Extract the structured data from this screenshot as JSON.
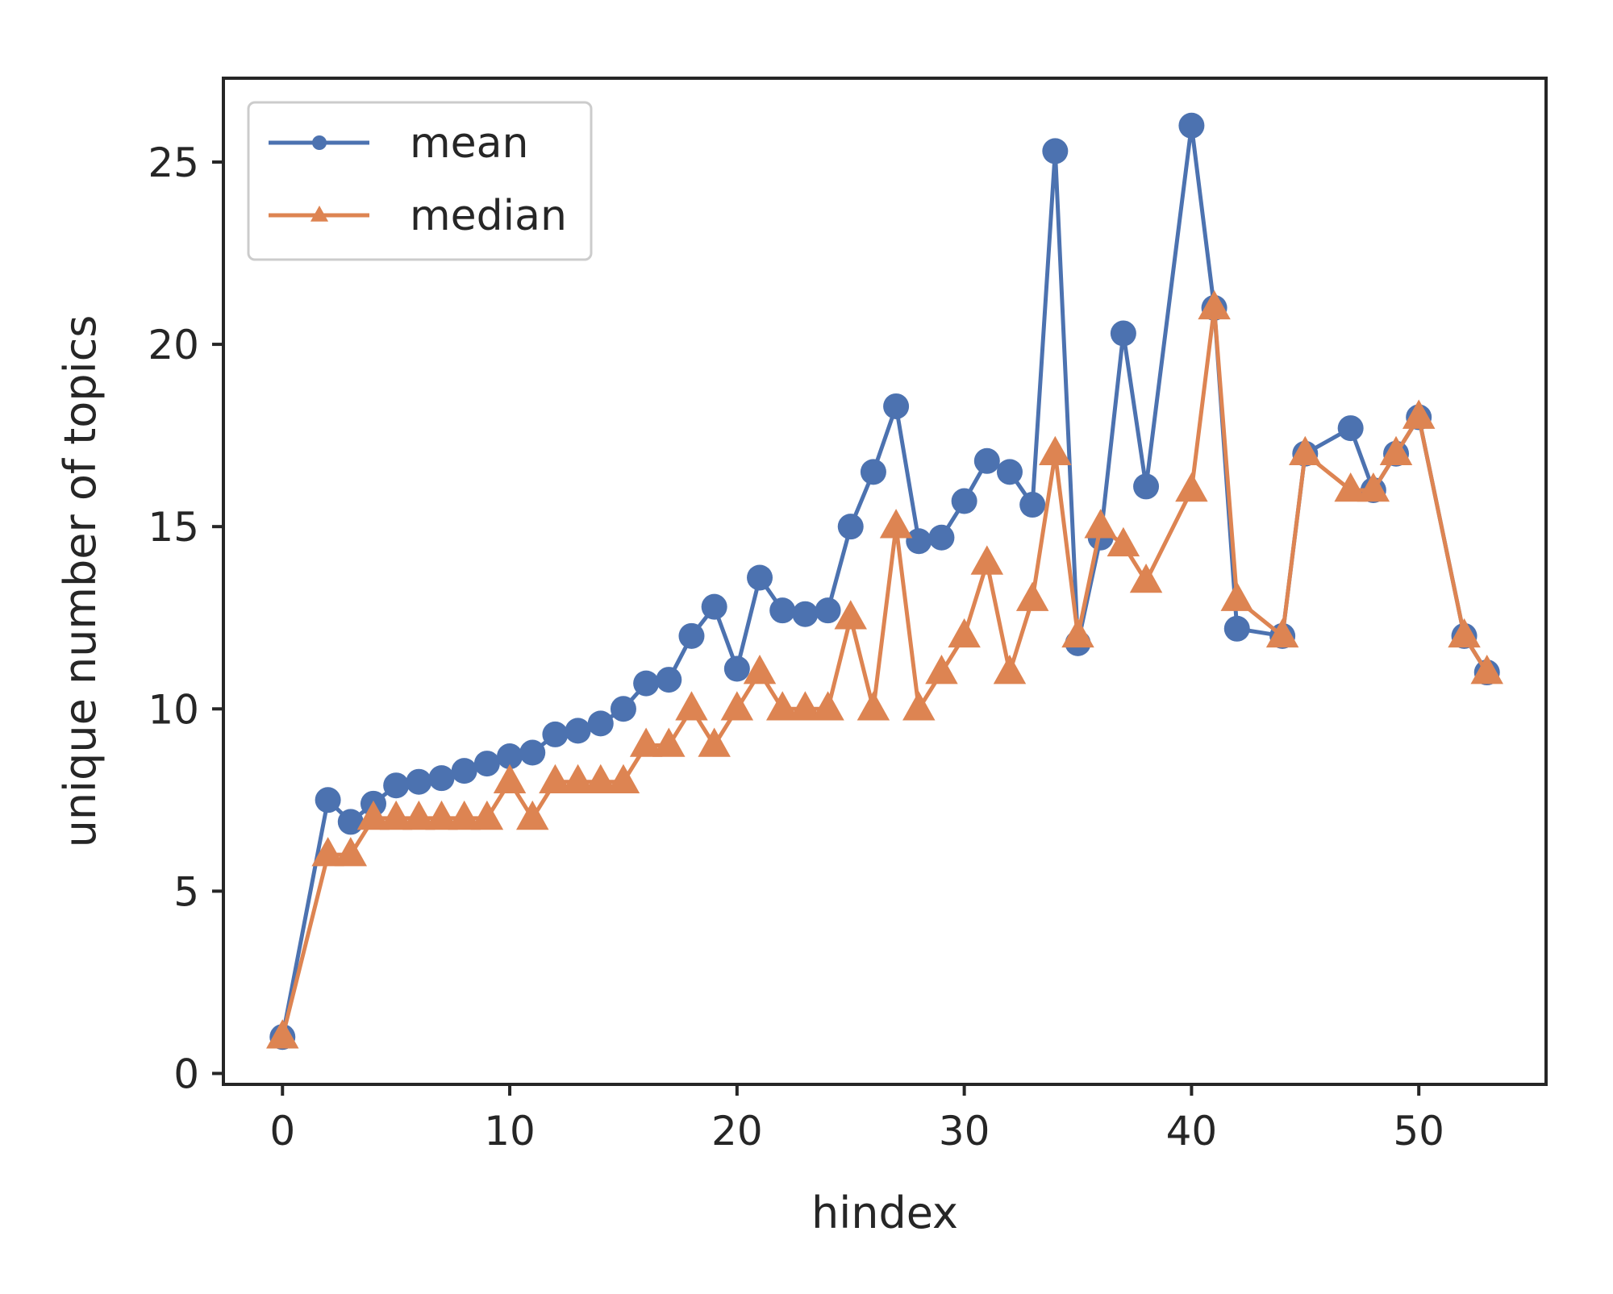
{
  "chart_data": {
    "type": "line",
    "title": "",
    "xlabel": "hindex",
    "ylabel": "unique number of topics",
    "xlim": [
      -2.6,
      55.6
    ],
    "ylim": [
      -0.3,
      27.3
    ],
    "xticks": [
      0,
      10,
      20,
      30,
      40,
      50
    ],
    "yticks": [
      0,
      5,
      10,
      15,
      20,
      25
    ],
    "grid": false,
    "legend_position": "top-left",
    "series": [
      {
        "name": "mean",
        "color": "#4c72b0",
        "marker": "circle",
        "points": [
          [
            0,
            1.0
          ],
          [
            2,
            7.5
          ],
          [
            3,
            6.9
          ],
          [
            4,
            7.4
          ],
          [
            5,
            7.9
          ],
          [
            6,
            8.0
          ],
          [
            7,
            8.1
          ],
          [
            8,
            8.3
          ],
          [
            9,
            8.5
          ],
          [
            10,
            8.7
          ],
          [
            11,
            8.8
          ],
          [
            12,
            9.3
          ],
          [
            13,
            9.4
          ],
          [
            14,
            9.6
          ],
          [
            15,
            10.0
          ],
          [
            16,
            10.7
          ],
          [
            17,
            10.8
          ],
          [
            18,
            12.0
          ],
          [
            19,
            12.8
          ],
          [
            20,
            11.1
          ],
          [
            21,
            13.6
          ],
          [
            22,
            12.7
          ],
          [
            23,
            12.6
          ],
          [
            24,
            12.7
          ],
          [
            25,
            15.0
          ],
          [
            26,
            16.5
          ],
          [
            27,
            18.3
          ],
          [
            28,
            14.6
          ],
          [
            29,
            14.7
          ],
          [
            30,
            15.7
          ],
          [
            31,
            16.8
          ],
          [
            32,
            16.5
          ],
          [
            33,
            15.6
          ],
          [
            34,
            25.3
          ],
          [
            35,
            11.8
          ],
          [
            36,
            14.7
          ],
          [
            37,
            20.3
          ],
          [
            38,
            16.1
          ],
          [
            40,
            26.0
          ],
          [
            41,
            21.0
          ],
          [
            42,
            12.2
          ],
          [
            44,
            12.0
          ],
          [
            45,
            17.0
          ],
          [
            47,
            17.7
          ],
          [
            48,
            16.0
          ],
          [
            49,
            17.0
          ],
          [
            50,
            18.0
          ],
          [
            52,
            12.0
          ],
          [
            53,
            11.0
          ]
        ]
      },
      {
        "name": "median",
        "color": "#dd8452",
        "marker": "triangle",
        "points": [
          [
            0,
            1.0
          ],
          [
            2,
            6.0
          ],
          [
            3,
            6.0
          ],
          [
            4,
            7.0
          ],
          [
            5,
            7.0
          ],
          [
            6,
            7.0
          ],
          [
            7,
            7.0
          ],
          [
            8,
            7.0
          ],
          [
            9,
            7.0
          ],
          [
            10,
            8.0
          ],
          [
            11,
            7.0
          ],
          [
            12,
            8.0
          ],
          [
            13,
            8.0
          ],
          [
            14,
            8.0
          ],
          [
            15,
            8.0
          ],
          [
            16,
            9.0
          ],
          [
            17,
            9.0
          ],
          [
            18,
            10.0
          ],
          [
            19,
            9.0
          ],
          [
            20,
            10.0
          ],
          [
            21,
            11.0
          ],
          [
            22,
            10.0
          ],
          [
            23,
            10.0
          ],
          [
            24,
            10.0
          ],
          [
            25,
            12.5
          ],
          [
            26,
            10.0
          ],
          [
            27,
            15.0
          ],
          [
            28,
            10.0
          ],
          [
            29,
            11.0
          ],
          [
            30,
            12.0
          ],
          [
            31,
            14.0
          ],
          [
            32,
            11.0
          ],
          [
            33,
            13.0
          ],
          [
            34,
            17.0
          ],
          [
            35,
            12.0
          ],
          [
            36,
            15.0
          ],
          [
            37,
            14.5
          ],
          [
            38,
            13.5
          ],
          [
            40,
            16.0
          ],
          [
            41,
            21.0
          ],
          [
            42,
            13.0
          ],
          [
            44,
            12.0
          ],
          [
            45,
            17.0
          ],
          [
            47,
            16.0
          ],
          [
            48,
            16.0
          ],
          [
            49,
            17.0
          ],
          [
            50,
            18.0
          ],
          [
            52,
            12.0
          ],
          [
            53,
            11.0
          ]
        ]
      }
    ]
  }
}
